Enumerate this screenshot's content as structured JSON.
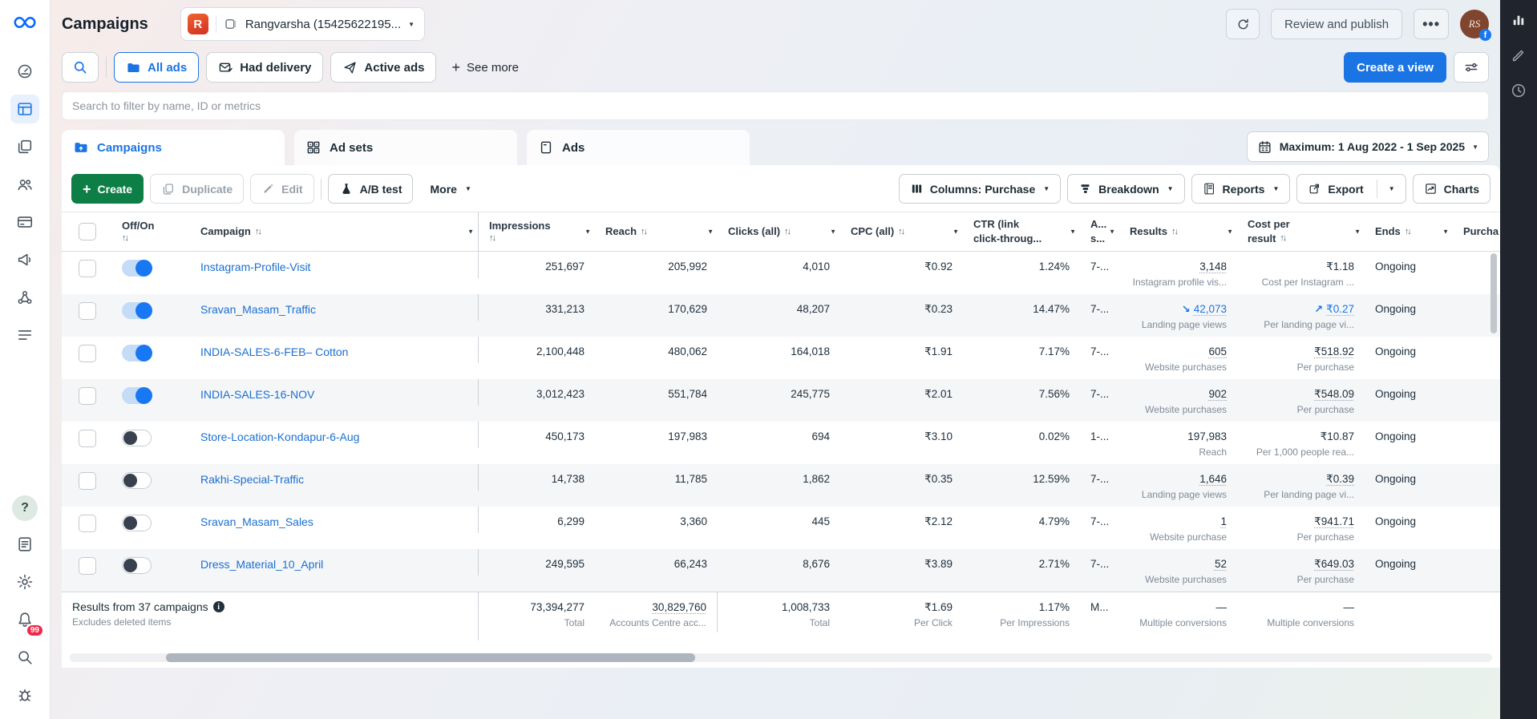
{
  "header": {
    "title": "Campaigns",
    "account_app_letter": "R",
    "account_name": "Rangvarsha (15425622195...",
    "review_publish_label": "Review and publish",
    "more_label": "...",
    "avatar_text": "RS"
  },
  "left_nav": {
    "top_icons": [
      "meta-logo-icon",
      "overview-icon",
      "campaigns-icon",
      "reporting-icon",
      "audiences-icon",
      "billing-icon",
      "megaphone-icon",
      "events-icon",
      "all-tools-icon"
    ],
    "active_icon": "campaigns-icon",
    "bottom_icons": [
      "help-icon",
      "feedback-icon",
      "settings-icon",
      "bell-icon",
      "search-icon",
      "bug-icon"
    ],
    "notification_count": "99"
  },
  "right_rail": {
    "icons": [
      "bar-chart-icon",
      "pencil-icon",
      "clock-icon"
    ]
  },
  "filter_bar": {
    "chips": [
      {
        "label": "All ads",
        "icon": "folder-icon",
        "active": true
      },
      {
        "label": "Had delivery",
        "icon": "envelope-check-icon",
        "active": false
      },
      {
        "label": "Active ads",
        "icon": "paper-plane-icon",
        "active": false
      }
    ],
    "see_more_label": "See more",
    "create_view_label": "Create a view"
  },
  "search_input": {
    "placeholder": "Search to filter by name, ID or metrics"
  },
  "tabs": [
    {
      "label": "Campaigns",
      "icon": "campaigns-folder-icon",
      "active": true
    },
    {
      "label": "Ad sets",
      "icon": "adsets-grid-icon",
      "active": false
    },
    {
      "label": "Ads",
      "icon": "ads-page-icon",
      "active": false
    }
  ],
  "date_filter": {
    "label": "Maximum: 1 Aug 2022 - 1 Sep 2025"
  },
  "toolbar": {
    "create_label": "Create",
    "duplicate_label": "Duplicate",
    "edit_label": "Edit",
    "ab_test_label": "A/B test",
    "more_label": "More",
    "columns_label": "Columns: Purchase",
    "breakdown_label": "Breakdown",
    "reports_label": "Reports",
    "export_label": "Export",
    "charts_label": "Charts"
  },
  "table": {
    "columns": [
      {
        "id": "toggle",
        "label": "Off/On",
        "sort": true,
        "sort_line2": true
      },
      {
        "id": "campaign",
        "label": "Campaign",
        "sort": true,
        "menu": true
      },
      {
        "id": "impressions",
        "label": "Impressions",
        "sort": true,
        "sort_line2": true,
        "menu": true,
        "align": "num"
      },
      {
        "id": "reach",
        "label": "Reach",
        "sort": true,
        "menu": true,
        "align": "num"
      },
      {
        "id": "clicks",
        "label": "Clicks (all)",
        "sort": true,
        "menu": true,
        "align": "num"
      },
      {
        "id": "cpc",
        "label": "CPC (all)",
        "sort": true,
        "menu": true,
        "align": "num"
      },
      {
        "id": "ctr",
        "label": "CTR (link",
        "label2": "click-throug...",
        "menu": true,
        "align": "num"
      },
      {
        "id": "attribution",
        "label": "A...",
        "label2": "s...",
        "menu": true
      },
      {
        "id": "results",
        "label": "Results",
        "sort": true,
        "menu": true,
        "align": "num"
      },
      {
        "id": "cost_per_result",
        "label": "Cost per",
        "label2": "result",
        "sort": true,
        "menu": true,
        "align": "num"
      },
      {
        "id": "ends",
        "label": "Ends",
        "sort": true,
        "menu": true
      },
      {
        "id": "purchase",
        "label": "Purcha"
      }
    ],
    "rows": [
      {
        "name": "Instagram-Profile-Visit",
        "on": true,
        "impressions": "251,697",
        "reach": "205,992",
        "clicks": "4,010",
        "cpc": "₹0.92",
        "ctr": "1.24%",
        "attribution": "7-...",
        "results": {
          "value": "3,148",
          "label": "Instagram profile vis...",
          "underline": true
        },
        "cost_per_result": {
          "value": "₹1.18",
          "label": "Cost per Instagram ..."
        },
        "ends": "Ongoing"
      },
      {
        "name": "Sravan_Masam_Traffic",
        "on": true,
        "impressions": "331,213",
        "reach": "170,629",
        "clicks": "48,207",
        "cpc": "₹0.23",
        "ctr": "14.47%",
        "attribution": "7-...",
        "results": {
          "value": "42,073",
          "label": "Landing page views",
          "underline": true,
          "trend": "down"
        },
        "cost_per_result": {
          "value": "₹0.27",
          "label": "Per landing page vi...",
          "underline": true,
          "trend": "up"
        },
        "ends": "Ongoing"
      },
      {
        "name": "INDIA-SALES-6-FEB– Cotton",
        "on": true,
        "impressions": "2,100,448",
        "reach": "480,062",
        "clicks": "164,018",
        "cpc": "₹1.91",
        "ctr": "7.17%",
        "attribution": "7-...",
        "results": {
          "value": "605",
          "label": "Website purchases",
          "underline": true
        },
        "cost_per_result": {
          "value": "₹518.92",
          "label": "Per purchase",
          "underline": true
        },
        "ends": "Ongoing"
      },
      {
        "name": "INDIA-SALES-16-NOV",
        "on": true,
        "impressions": "3,012,423",
        "reach": "551,784",
        "clicks": "245,775",
        "cpc": "₹2.01",
        "ctr": "7.56%",
        "attribution": "7-...",
        "results": {
          "value": "902",
          "label": "Website purchases",
          "underline": true
        },
        "cost_per_result": {
          "value": "₹548.09",
          "label": "Per purchase",
          "underline": true
        },
        "ends": "Ongoing"
      },
      {
        "name": "Store-Location-Kondapur-6-Aug",
        "on": false,
        "impressions": "450,173",
        "reach": "197,983",
        "clicks": "694",
        "cpc": "₹3.10",
        "ctr": "0.02%",
        "attribution": "1-...",
        "results": {
          "value": "197,983",
          "label": "Reach"
        },
        "cost_per_result": {
          "value": "₹10.87",
          "label": "Per 1,000 people rea..."
        },
        "ends": "Ongoing"
      },
      {
        "name": "Rakhi-Special-Traffic",
        "on": false,
        "impressions": "14,738",
        "reach": "11,785",
        "clicks": "1,862",
        "cpc": "₹0.35",
        "ctr": "12.59%",
        "attribution": "7-...",
        "results": {
          "value": "1,646",
          "label": "Landing page views",
          "underline": true
        },
        "cost_per_result": {
          "value": "₹0.39",
          "label": "Per landing page vi...",
          "underline": true
        },
        "ends": "Ongoing"
      },
      {
        "name": "Sravan_Masam_Sales",
        "on": false,
        "impressions": "6,299",
        "reach": "3,360",
        "clicks": "445",
        "cpc": "₹2.12",
        "ctr": "4.79%",
        "attribution": "7-...",
        "results": {
          "value": "1",
          "label": "Website purchase",
          "underline": true
        },
        "cost_per_result": {
          "value": "₹941.71",
          "label": "Per purchase",
          "underline": true
        },
        "ends": "Ongoing"
      },
      {
        "name": "Dress_Material_10_April",
        "on": false,
        "impressions": "249,595",
        "reach": "66,243",
        "clicks": "8,676",
        "cpc": "₹3.89",
        "ctr": "2.71%",
        "attribution": "7-...",
        "results": {
          "value": "52",
          "label": "Website purchases",
          "underline": true
        },
        "cost_per_result": {
          "value": "₹649.03",
          "label": "Per purchase",
          "underline": true
        },
        "ends": "Ongoing"
      }
    ],
    "summary": {
      "title": "Results from 37 campaigns",
      "note": "Excludes deleted items",
      "impressions": {
        "value": "73,394,277",
        "label": "Total"
      },
      "reach": {
        "value": "30,829,760",
        "label": "Accounts Centre acc..."
      },
      "clicks": {
        "value": "1,008,733",
        "label": "Total"
      },
      "cpc": {
        "value": "₹1.69",
        "label": "Per Click"
      },
      "ctr": {
        "value": "1.17%",
        "label": "Per Impressions"
      },
      "attribution": "M...",
      "results": {
        "value": "—",
        "label": "Multiple conversions"
      },
      "cost_per_result": {
        "value": "—",
        "label": "Multiple conversions"
      }
    }
  },
  "colors": {
    "accent_blue": "#1b74e4",
    "create_green": "#0d7e46",
    "link_blue": "#1a6fd0",
    "badge_red": "#f02849",
    "right_rail_dark": "#20242c"
  }
}
